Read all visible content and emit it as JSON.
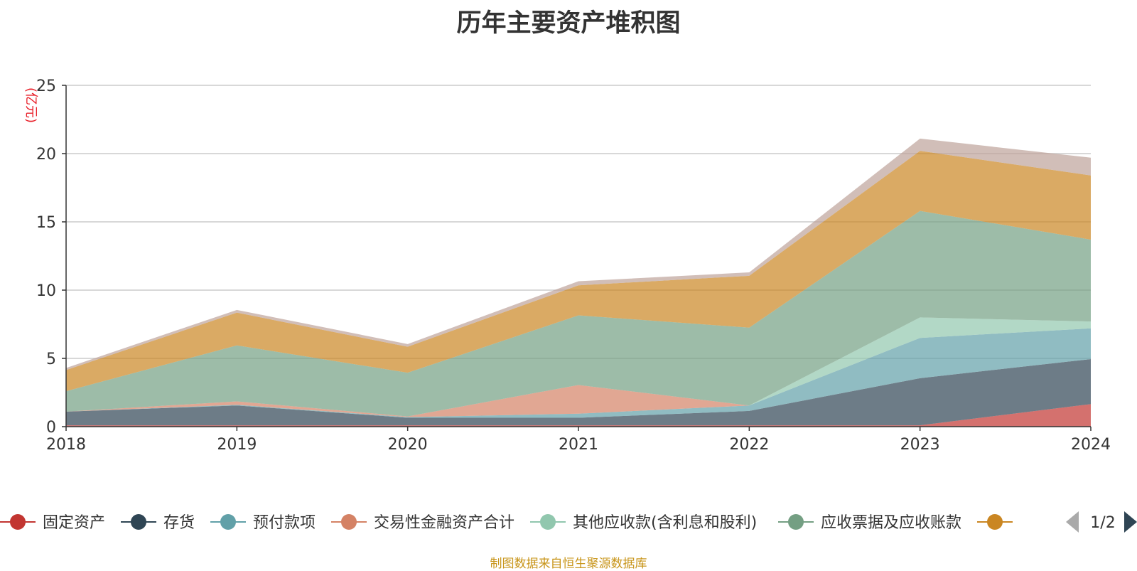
{
  "chart_data": {
    "type": "area",
    "stacked": true,
    "title": "历年主要资产堆积图",
    "unit_label": "(亿元)",
    "xlabel": "",
    "ylabel": "",
    "x": [
      "2018",
      "2019",
      "2020",
      "2021",
      "2022",
      "2023",
      "2024"
    ],
    "ylim": [
      0,
      25
    ],
    "yticks": [
      0,
      5,
      10,
      15,
      20,
      25
    ],
    "grid": true,
    "legend_position": "bottom",
    "legend_page": "1/2",
    "series": [
      {
        "name": "固定资产",
        "color": "#c23531",
        "values": [
          0.1,
          0.1,
          0.1,
          0.1,
          0.1,
          0.1,
          1.65
        ]
      },
      {
        "name": "存货",
        "color": "#2f4554",
        "values": [
          1.0,
          1.45,
          0.55,
          0.55,
          1.05,
          3.45,
          3.3
        ]
      },
      {
        "name": "预付款项",
        "color": "#61a0a8",
        "values": [
          0.0,
          0.05,
          0.05,
          0.3,
          0.4,
          2.95,
          2.25
        ]
      },
      {
        "name": "交易性金融资产合计",
        "color": "#d48265",
        "values": [
          0.0,
          0.25,
          0.05,
          2.1,
          0.0,
          0.0,
          0.0
        ]
      },
      {
        "name": "其他应收款(含利息和股利)",
        "color": "#91c7ae",
        "values": [
          0.0,
          0.0,
          0.0,
          0.0,
          0.0,
          1.5,
          0.5
        ]
      },
      {
        "name": "应收票据及应收账款",
        "color": "#749f83",
        "values": [
          1.5,
          4.1,
          3.2,
          5.1,
          5.7,
          7.8,
          6.0
        ]
      },
      {
        "name": "",
        "color": "#ca8622",
        "values": [
          1.55,
          2.4,
          1.9,
          2.2,
          3.8,
          4.4,
          4.7
        ]
      },
      {
        "name": "",
        "color": "#bda29a",
        "values": [
          0.15,
          0.2,
          0.2,
          0.3,
          0.25,
          0.9,
          1.3
        ]
      }
    ]
  },
  "legend_items": [
    {
      "name": "固定资产",
      "color": "#c23531"
    },
    {
      "name": "存货",
      "color": "#2f4554"
    },
    {
      "name": "预付款项",
      "color": "#61a0a8"
    },
    {
      "name": "交易性金融资产合计",
      "color": "#d48265"
    },
    {
      "name": "其他应收款(含利息和股利)",
      "color": "#91c7ae"
    },
    {
      "name": "应收票据及应收账款",
      "color": "#749f83"
    },
    {
      "name": "",
      "color": "#ca8622"
    }
  ],
  "source_note": "制图数据来自恒生聚源数据库",
  "icons": {
    "prev": "triangle-left-icon",
    "next": "triangle-right-icon"
  }
}
